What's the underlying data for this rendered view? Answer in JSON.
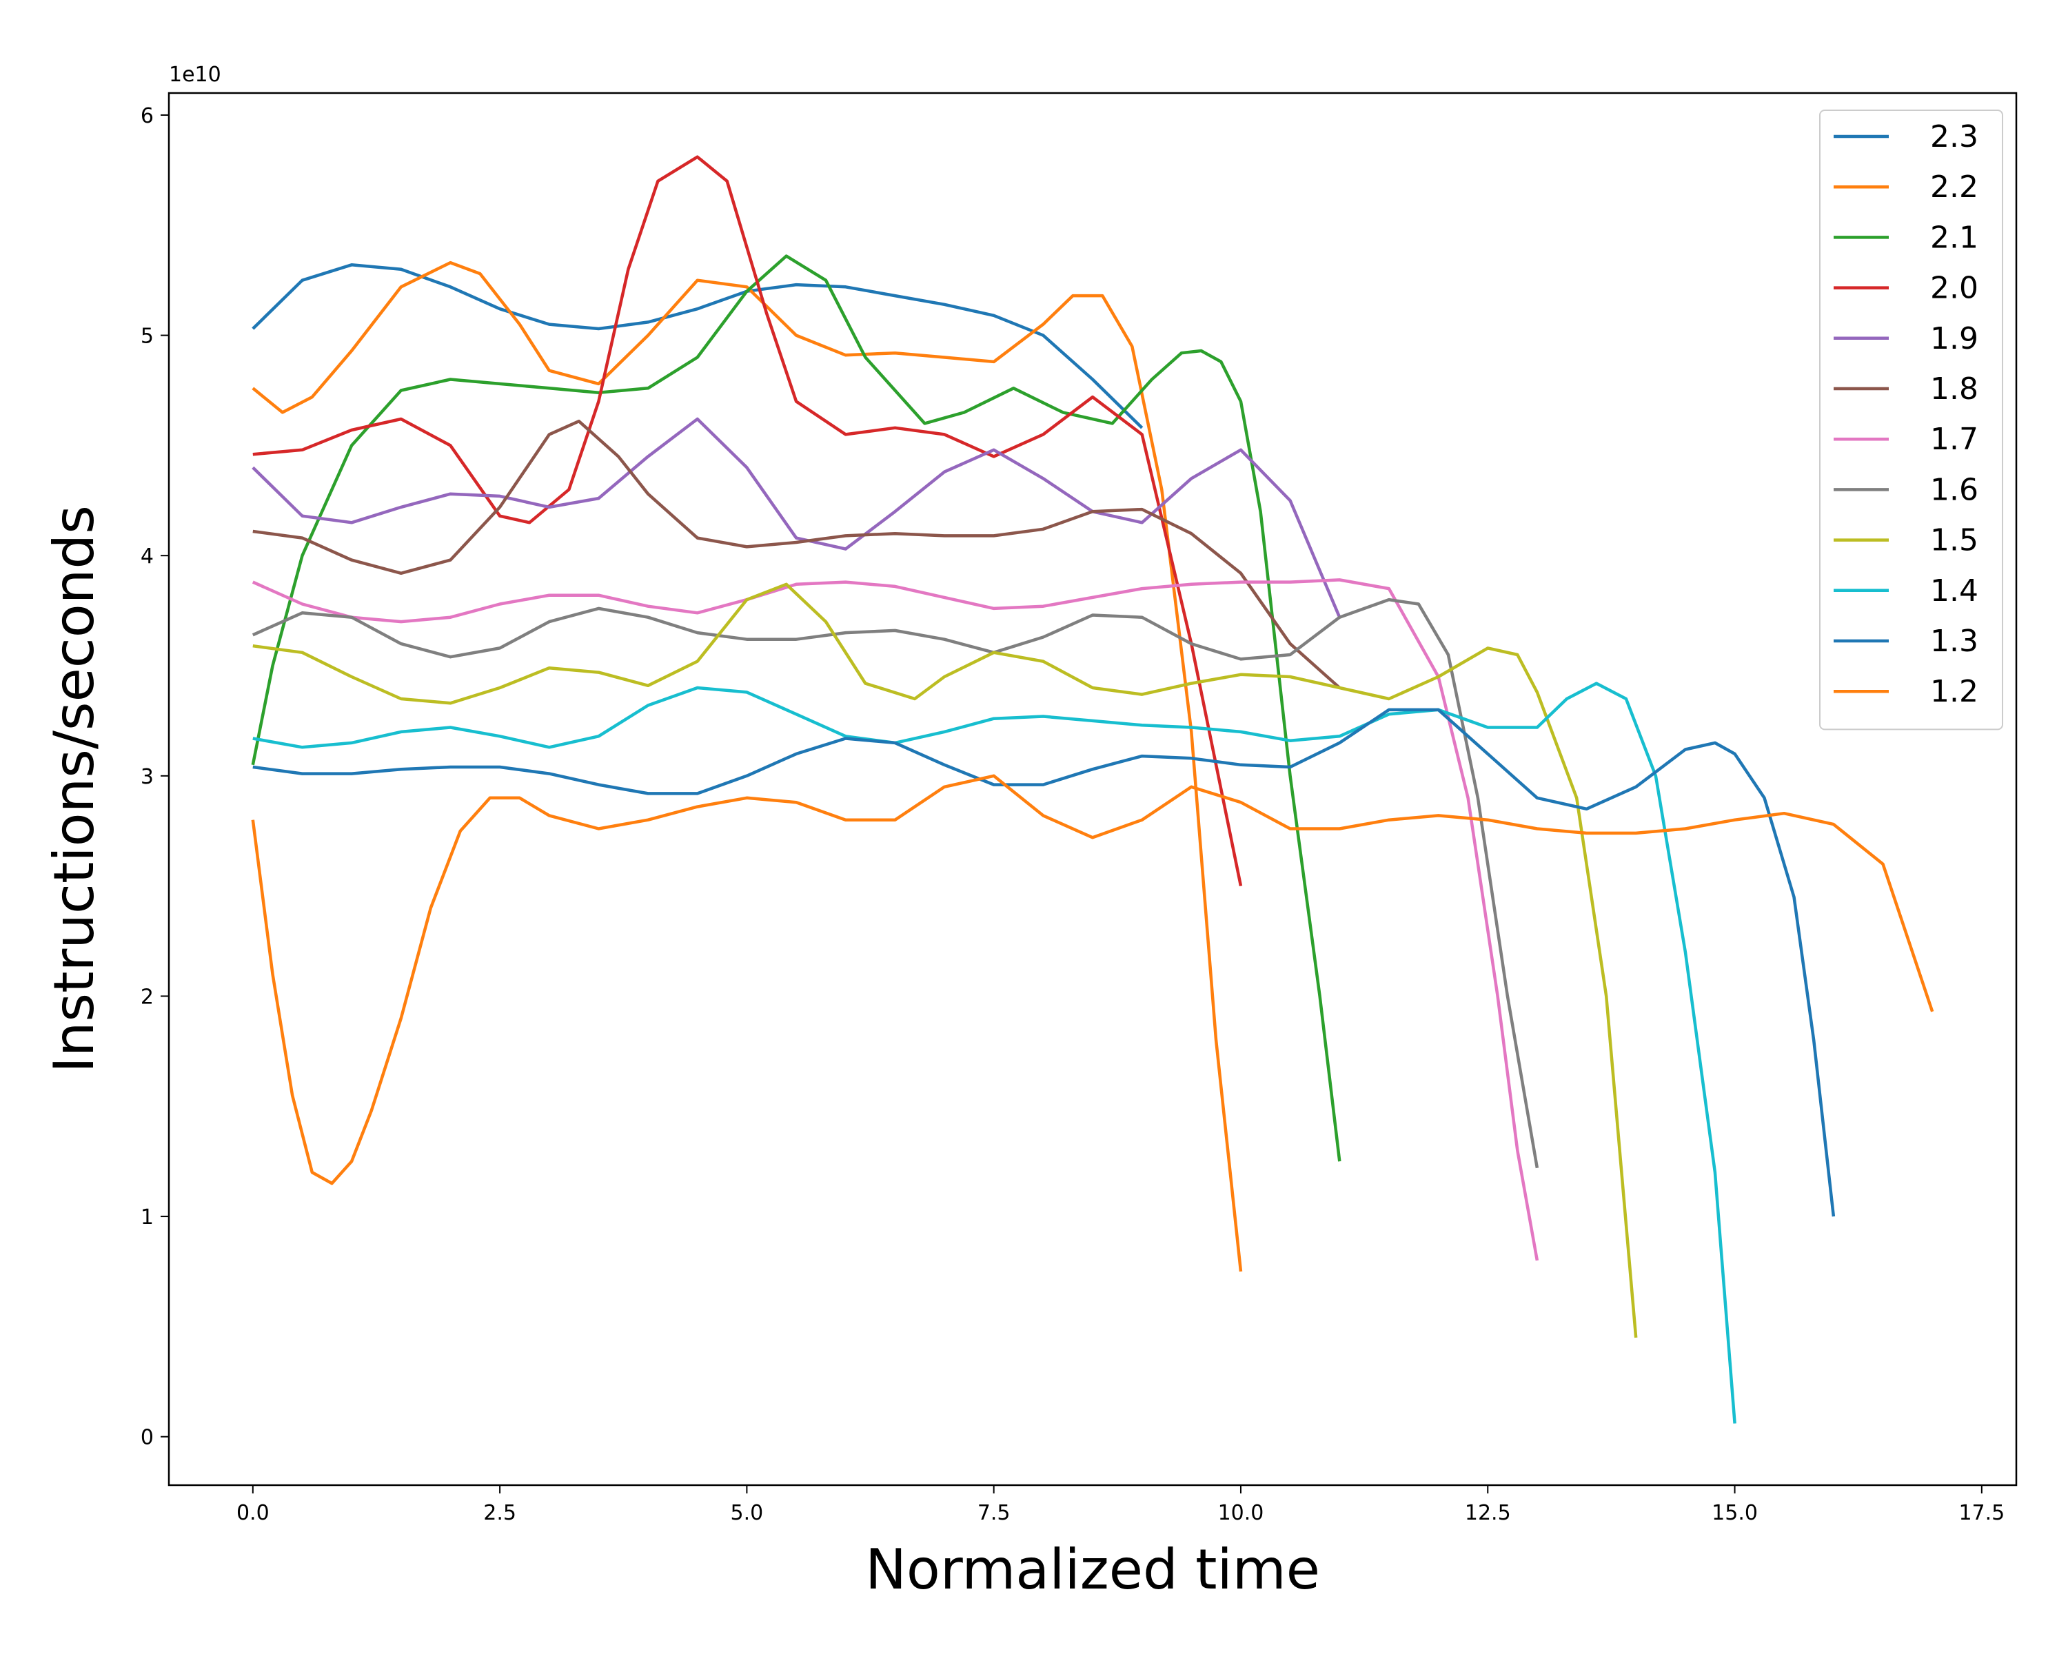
{
  "chart_data": {
    "type": "line",
    "xlabel": "Normalized time",
    "ylabel": "Instructions/seconds",
    "y_offset_label": "1e10",
    "xlim": [
      -0.85,
      17.85
    ],
    "ylim": [
      -0.22,
      6.1
    ],
    "x_ticks": [
      0.0,
      2.5,
      5.0,
      7.5,
      10.0,
      12.5,
      15.0,
      17.5
    ],
    "x_tick_labels": [
      "0.0",
      "2.5",
      "5.0",
      "7.5",
      "10.0",
      "12.5",
      "15.0",
      "17.5"
    ],
    "y_ticks": [
      0,
      1,
      2,
      3,
      4,
      5,
      6
    ],
    "y_tick_labels": [
      "0",
      "1",
      "2",
      "3",
      "4",
      "5",
      "6"
    ],
    "grid": false,
    "legend_position": "top-right",
    "series": [
      {
        "name": "2.3",
        "color": "#1f77b4",
        "x": [
          0,
          0.5,
          1,
          1.5,
          2,
          2.5,
          3,
          3.5,
          4,
          4.5,
          5,
          5.5,
          6,
          6.5,
          7,
          7.5,
          8,
          8.5,
          9
        ],
        "y": [
          5.03,
          5.25,
          5.32,
          5.3,
          5.22,
          5.12,
          5.05,
          5.03,
          5.06,
          5.12,
          5.2,
          5.23,
          5.22,
          5.18,
          5.14,
          5.09,
          5.0,
          4.8,
          4.58
        ]
      },
      {
        "name": "2.2",
        "color": "#ff7f0e",
        "x": [
          0,
          0.3,
          0.6,
          1,
          1.5,
          2,
          2.3,
          2.7,
          3,
          3.5,
          4,
          4.5,
          5,
          5.5,
          6,
          6.5,
          7,
          7.5,
          8,
          8.3,
          8.6,
          8.9,
          9.2,
          9.5,
          9.75,
          10.0
        ],
        "y": [
          4.76,
          4.65,
          4.72,
          4.93,
          5.22,
          5.33,
          5.28,
          5.05,
          4.84,
          4.78,
          5.0,
          5.25,
          5.22,
          5.0,
          4.91,
          4.92,
          4.9,
          4.88,
          5.05,
          5.18,
          5.18,
          4.95,
          4.3,
          3.2,
          1.8,
          0.75
        ]
      },
      {
        "name": "2.1",
        "color": "#2ca02c",
        "x": [
          0,
          0.2,
          0.5,
          1,
          1.5,
          2,
          2.5,
          3,
          3.5,
          4,
          4.5,
          5,
          5.4,
          5.8,
          6.2,
          6.8,
          7.2,
          7.7,
          8.2,
          8.7,
          9.1,
          9.4,
          9.6,
          9.8,
          10.0,
          10.2,
          10.5,
          10.8,
          11.0
        ],
        "y": [
          3.05,
          3.5,
          4.0,
          4.5,
          4.75,
          4.8,
          4.78,
          4.76,
          4.74,
          4.76,
          4.9,
          5.2,
          5.36,
          5.25,
          4.9,
          4.6,
          4.65,
          4.76,
          4.65,
          4.6,
          4.8,
          4.92,
          4.93,
          4.88,
          4.7,
          4.2,
          3.0,
          2.0,
          1.25
        ]
      },
      {
        "name": "2.0",
        "color": "#d62728",
        "x": [
          0,
          0.5,
          1,
          1.5,
          2,
          2.5,
          2.8,
          3.2,
          3.5,
          3.8,
          4.1,
          4.5,
          4.8,
          5.2,
          5.5,
          6,
          6.5,
          7,
          7.5,
          8,
          8.5,
          9,
          9.5,
          10
        ],
        "y": [
          4.46,
          4.48,
          4.57,
          4.62,
          4.5,
          4.18,
          4.15,
          4.3,
          4.7,
          5.3,
          5.7,
          5.81,
          5.7,
          5.1,
          4.7,
          4.55,
          4.58,
          4.55,
          4.45,
          4.55,
          4.72,
          4.55,
          3.6,
          2.5
        ]
      },
      {
        "name": "1.9",
        "color": "#9467bd",
        "x": [
          0,
          0.5,
          1,
          1.5,
          2,
          2.5,
          3,
          3.5,
          4,
          4.5,
          5,
          5.5,
          6,
          6.5,
          7,
          7.5,
          8,
          8.5,
          9,
          9.5,
          10,
          10.5,
          11
        ],
        "y": [
          4.4,
          4.18,
          4.15,
          4.22,
          4.28,
          4.27,
          4.22,
          4.26,
          4.45,
          4.62,
          4.4,
          4.08,
          4.03,
          4.2,
          4.38,
          4.48,
          4.35,
          4.2,
          4.15,
          4.35,
          4.48,
          4.25,
          3.72
        ]
      },
      {
        "name": "1.8",
        "color": "#8c564b",
        "x": [
          0,
          0.5,
          1,
          1.5,
          2,
          2.5,
          3,
          3.3,
          3.7,
          4,
          4.5,
          5,
          5.5,
          6,
          6.5,
          7,
          7.5,
          8,
          8.5,
          9,
          9.5,
          10,
          10.5,
          11
        ],
        "y": [
          4.11,
          4.08,
          3.98,
          3.92,
          3.98,
          4.22,
          4.55,
          4.61,
          4.45,
          4.28,
          4.08,
          4.04,
          4.06,
          4.09,
          4.1,
          4.09,
          4.09,
          4.12,
          4.2,
          4.21,
          4.1,
          3.92,
          3.6,
          3.4
        ]
      },
      {
        "name": "1.7",
        "color": "#e377c2",
        "x": [
          0,
          0.5,
          1,
          1.5,
          2,
          2.5,
          3,
          3.5,
          4,
          4.5,
          5,
          5.5,
          6,
          6.5,
          7,
          7.5,
          8,
          8.5,
          9,
          9.5,
          10,
          10.5,
          11,
          11.5,
          12,
          12.3,
          12.6,
          12.8,
          13.0
        ],
        "y": [
          3.88,
          3.78,
          3.72,
          3.7,
          3.72,
          3.78,
          3.82,
          3.82,
          3.77,
          3.74,
          3.8,
          3.87,
          3.88,
          3.86,
          3.81,
          3.76,
          3.77,
          3.81,
          3.85,
          3.87,
          3.88,
          3.88,
          3.89,
          3.85,
          3.45,
          2.9,
          2.0,
          1.3,
          0.8
        ]
      },
      {
        "name": "1.6",
        "color": "#7f7f7f",
        "x": [
          0,
          0.5,
          1,
          1.5,
          2,
          2.5,
          3,
          3.5,
          4,
          4.5,
          5,
          5.5,
          6,
          6.5,
          7,
          7.5,
          8,
          8.5,
          9,
          9.5,
          10,
          10.5,
          11,
          11.5,
          11.8,
          12.1,
          12.4,
          12.7,
          13.0
        ],
        "y": [
          3.64,
          3.74,
          3.72,
          3.6,
          3.54,
          3.58,
          3.7,
          3.76,
          3.72,
          3.65,
          3.62,
          3.62,
          3.65,
          3.66,
          3.62,
          3.56,
          3.63,
          3.73,
          3.72,
          3.6,
          3.53,
          3.55,
          3.72,
          3.8,
          3.78,
          3.55,
          2.9,
          2.0,
          1.22
        ]
      },
      {
        "name": "1.5",
        "color": "#bcbd22",
        "x": [
          0,
          0.5,
          1,
          1.5,
          2,
          2.5,
          3,
          3.5,
          4,
          4.5,
          5,
          5.4,
          5.8,
          6.2,
          6.7,
          7,
          7.5,
          8,
          8.5,
          9,
          9.5,
          10,
          10.5,
          11,
          11.5,
          12,
          12.5,
          12.8,
          13.0,
          13.4,
          13.7,
          14.0
        ],
        "y": [
          3.59,
          3.56,
          3.45,
          3.35,
          3.33,
          3.4,
          3.49,
          3.47,
          3.41,
          3.52,
          3.8,
          3.87,
          3.7,
          3.42,
          3.35,
          3.45,
          3.56,
          3.52,
          3.4,
          3.37,
          3.42,
          3.46,
          3.45,
          3.4,
          3.35,
          3.45,
          3.58,
          3.55,
          3.38,
          2.9,
          2.0,
          0.45
        ]
      },
      {
        "name": "1.4",
        "color": "#17becf",
        "x": [
          0,
          0.5,
          1,
          1.5,
          2,
          2.5,
          3,
          3.5,
          4,
          4.5,
          5,
          5.5,
          6,
          6.5,
          7,
          7.5,
          8,
          8.5,
          9,
          9.5,
          10,
          10.5,
          11,
          11.5,
          12,
          12.5,
          13,
          13.3,
          13.6,
          13.9,
          14.2,
          14.5,
          14.8,
          15.0
        ],
        "y": [
          3.17,
          3.13,
          3.15,
          3.2,
          3.22,
          3.18,
          3.13,
          3.18,
          3.32,
          3.4,
          3.38,
          3.28,
          3.18,
          3.15,
          3.2,
          3.26,
          3.27,
          3.25,
          3.23,
          3.22,
          3.2,
          3.16,
          3.18,
          3.28,
          3.3,
          3.22,
          3.22,
          3.35,
          3.42,
          3.35,
          3.0,
          2.2,
          1.2,
          0.06
        ]
      },
      {
        "name": "1.3",
        "color": "#1f77b4",
        "x": [
          0,
          0.5,
          1,
          1.5,
          2,
          2.5,
          3,
          3.5,
          4,
          4.5,
          5,
          5.5,
          6,
          6.5,
          7,
          7.5,
          8,
          8.5,
          9,
          9.5,
          10,
          10.5,
          11,
          11.5,
          12,
          12.5,
          13,
          13.5,
          14,
          14.5,
          14.8,
          15.0,
          15.3,
          15.6,
          15.8,
          16.0
        ],
        "y": [
          3.04,
          3.01,
          3.01,
          3.03,
          3.04,
          3.04,
          3.01,
          2.96,
          2.92,
          2.92,
          3.0,
          3.1,
          3.17,
          3.15,
          3.05,
          2.96,
          2.96,
          3.03,
          3.09,
          3.08,
          3.05,
          3.04,
          3.15,
          3.3,
          3.3,
          3.1,
          2.9,
          2.85,
          2.95,
          3.12,
          3.15,
          3.1,
          2.9,
          2.45,
          1.8,
          1.0
        ]
      },
      {
        "name": "1.2",
        "color": "#ff7f0e",
        "x": [
          0,
          0.2,
          0.4,
          0.6,
          0.8,
          1.0,
          1.2,
          1.5,
          1.8,
          2.1,
          2.4,
          2.7,
          3,
          3.5,
          4,
          4.5,
          5,
          5.5,
          6,
          6.5,
          7,
          7.5,
          8,
          8.5,
          9,
          9.5,
          10,
          10.5,
          11,
          11.5,
          12,
          12.5,
          13,
          13.5,
          14,
          14.5,
          15,
          15.5,
          16,
          16.5,
          17.0
        ],
        "y": [
          2.8,
          2.1,
          1.55,
          1.2,
          1.15,
          1.25,
          1.48,
          1.9,
          2.4,
          2.75,
          2.9,
          2.9,
          2.82,
          2.76,
          2.8,
          2.86,
          2.9,
          2.88,
          2.8,
          2.8,
          2.95,
          3.0,
          2.82,
          2.72,
          2.8,
          2.95,
          2.88,
          2.76,
          2.76,
          2.8,
          2.82,
          2.8,
          2.76,
          2.74,
          2.74,
          2.76,
          2.8,
          2.83,
          2.78,
          2.6,
          1.93
        ]
      }
    ]
  }
}
